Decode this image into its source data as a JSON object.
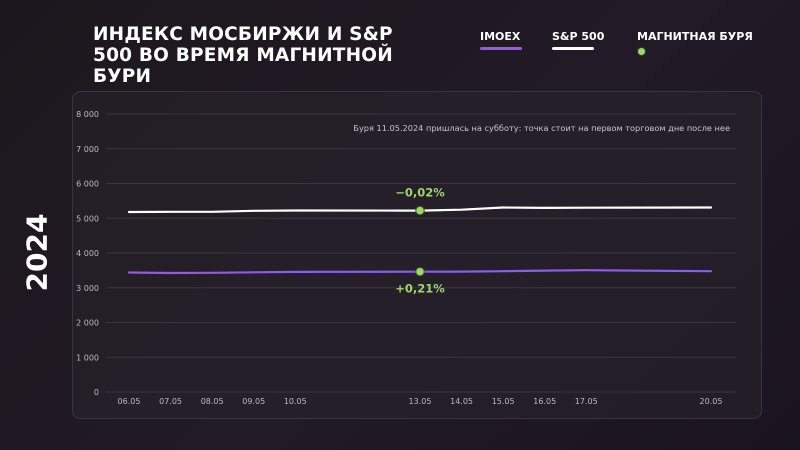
{
  "title": "ИНДЕКС МОСБИРЖИ И S&P 500 ВО ВРЕМЯ МАГНИТНОЙ БУРИ",
  "year": "2024",
  "legend": {
    "imoex": "IMOEX",
    "sp500": "S&P 500",
    "storm": "МАГНИТНАЯ БУРЯ"
  },
  "colors": {
    "imoex": "#8f5be8",
    "sp500": "#ffffff",
    "storm": "#9bd866",
    "annotation": "#9bd866",
    "grid": "#3a353f",
    "tick": "#bdb8c2"
  },
  "chart_data": {
    "type": "line",
    "x": [
      "06.05",
      "07.05",
      "08.05",
      "09.05",
      "10.05",
      "13.05",
      "14.05",
      "15.05",
      "16.05",
      "17.05",
      "20.05"
    ],
    "x_dates": [
      "2024-05-06",
      "2024-05-07",
      "2024-05-08",
      "2024-05-09",
      "2024-05-10",
      "2024-05-13",
      "2024-05-14",
      "2024-05-15",
      "2024-05-16",
      "2024-05-17",
      "2024-05-20"
    ],
    "series": [
      {
        "name": "S&P 500",
        "values": [
          5181,
          5187,
          5187,
          5214,
          5222,
          5221,
          5246,
          5308,
          5297,
          5303,
          5308
        ]
      },
      {
        "name": "IMOEX",
        "values": [
          3440,
          3425,
          3430,
          3444,
          3456,
          3463,
          3465,
          3475,
          3493,
          3505,
          3475
        ]
      }
    ],
    "storm_marker": {
      "label": "МАГНИТНАЯ БУРЯ",
      "date": "13.05",
      "points": [
        {
          "series": "S&P 500",
          "value": 5221,
          "change": "−0,02%"
        },
        {
          "series": "IMOEX",
          "value": 3463,
          "change": "+0,21%"
        }
      ]
    },
    "annotation": "Буря 11.05.2024 пришлась на субботу: точка стоит на первом торговом дне после нее",
    "ylim": [
      0,
      8000
    ],
    "yticks": [
      0,
      1000,
      2000,
      3000,
      4000,
      5000,
      6000,
      7000,
      8000
    ],
    "ytick_labels": [
      "0",
      "1 000",
      "2 000",
      "3 000",
      "4 000",
      "5 000",
      "6 000",
      "7 000",
      "8 000"
    ],
    "xlabel": "",
    "ylabel": "",
    "grid": true,
    "legend_position": "top-right"
  }
}
